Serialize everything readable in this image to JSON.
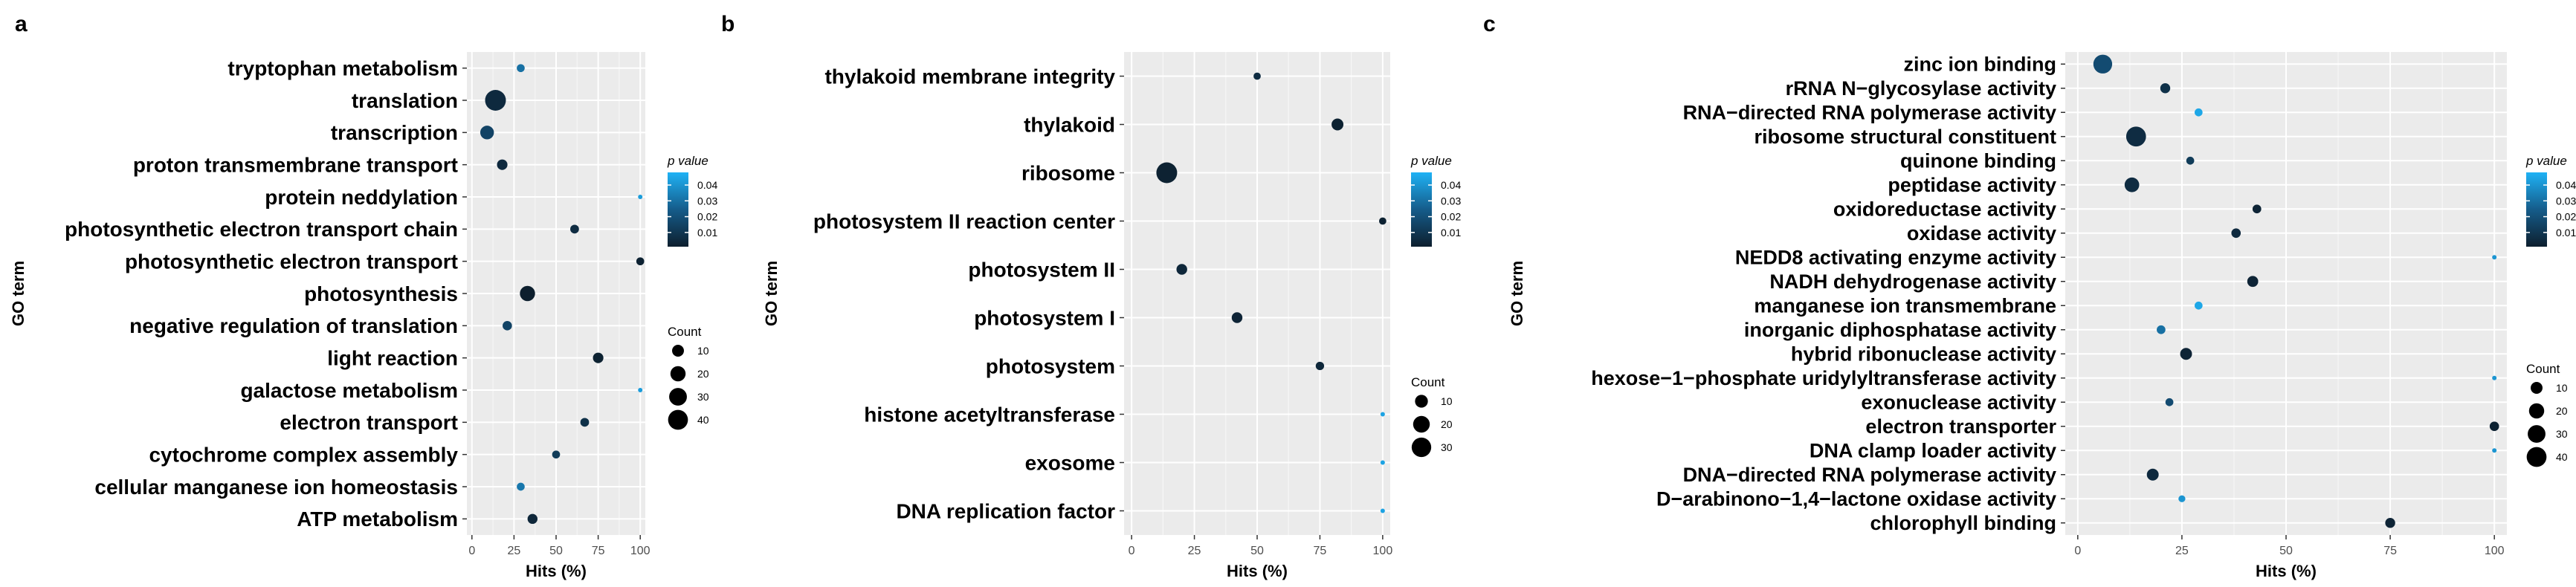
{
  "chart_data": [
    {
      "type": "scatter",
      "panel_letter": "a",
      "xlabel": "Hits (%)",
      "ylabel": "GO term",
      "xlim": [
        -3,
        103
      ],
      "xticks": [
        0,
        25,
        50,
        75,
        100
      ],
      "x_tick_labels": [
        "0",
        "25",
        "50",
        "75",
        "100"
      ],
      "grid": true,
      "legend_position": "right",
      "color_legend_title": "p value",
      "color_legend_ticks": [
        0.04,
        0.03,
        0.02,
        0.01
      ],
      "color_legend_tick_labels": [
        "0.04",
        "0.03",
        "0.02",
        "0.01"
      ],
      "pvalue_range": [
        0.001,
        0.048
      ],
      "size_legend_title": "Count",
      "size_legend_values": [
        10,
        20,
        30,
        40
      ],
      "size_range": [
        1,
        45
      ],
      "categories": [
        "tryptophan metabolism",
        "translation",
        "transcription",
        "proton transmembrane transport",
        "protein neddylation",
        "photosynthetic electron transport chain",
        "photosynthetic electron transport",
        "photosynthesis",
        "negative regulation of translation",
        "light reaction",
        "galactose metabolism",
        "electron transport",
        "cytochrome complex assembly",
        "cellular manganese ion homeostasis",
        "ATP metabolism"
      ],
      "hits": [
        29,
        14,
        9,
        18,
        100,
        61,
        100,
        33,
        21,
        75,
        100,
        67,
        50,
        29,
        36
      ],
      "counts": [
        3,
        45,
        15,
        7,
        1,
        4,
        3,
        20,
        5,
        7,
        1,
        4,
        3,
        3,
        6
      ],
      "p_values": [
        0.03,
        0.005,
        0.015,
        0.005,
        0.042,
        0.006,
        0.002,
        0.001,
        0.015,
        0.002,
        0.042,
        0.008,
        0.012,
        0.032,
        0.004
      ]
    },
    {
      "type": "scatter",
      "panel_letter": "b",
      "xlabel": "Hits (%)",
      "ylabel": "GO term",
      "xlim": [
        -3,
        103
      ],
      "xticks": [
        0,
        25,
        50,
        75,
        100
      ],
      "x_tick_labels": [
        "0",
        "25",
        "50",
        "75",
        "100"
      ],
      "grid": true,
      "legend_position": "right",
      "color_legend_title": "p value",
      "color_legend_ticks": [
        0.04,
        0.03,
        0.02,
        0.01
      ],
      "color_legend_tick_labels": [
        "0.04",
        "0.03",
        "0.02",
        "0.01"
      ],
      "pvalue_range": [
        0.001,
        0.048
      ],
      "size_legend_title": "Count",
      "size_legend_values": [
        10,
        20,
        30
      ],
      "size_range": [
        1,
        35
      ],
      "categories": [
        "thylakoid membrane integrity",
        "thylakoid",
        "ribosome",
        "photosystem II reaction center",
        "photosystem II",
        "photosystem I",
        "photosystem",
        "histone acetyltransferase",
        "exosome",
        "DNA replication factor"
      ],
      "hits": [
        50,
        82,
        14,
        100,
        20,
        42,
        75,
        100,
        100,
        100
      ],
      "counts": [
        2,
        8,
        35,
        2,
        6,
        6,
        3,
        1,
        1,
        1
      ],
      "p_values": [
        0.006,
        0.002,
        0.002,
        0.002,
        0.004,
        0.003,
        0.004,
        0.044,
        0.044,
        0.044
      ]
    },
    {
      "type": "scatter",
      "panel_letter": "c",
      "xlabel": "Hits (%)",
      "ylabel": "GO term",
      "xlim": [
        -3,
        103
      ],
      "xticks": [
        0,
        25,
        50,
        75,
        100
      ],
      "x_tick_labels": [
        "0",
        "25",
        "50",
        "75",
        "100"
      ],
      "grid": true,
      "legend_position": "right",
      "color_legend_title": "p value",
      "color_legend_ticks": [
        0.04,
        0.03,
        0.02,
        0.01
      ],
      "color_legend_tick_labels": [
        "0.04",
        "0.03",
        "0.02",
        "0.01"
      ],
      "pvalue_range": [
        0.001,
        0.048
      ],
      "size_legend_title": "Count",
      "size_legend_values": [
        10,
        20,
        30,
        40
      ],
      "size_range": [
        1,
        45
      ],
      "categories": [
        "zinc ion binding",
        "rRNA N−glycosylase activity",
        "RNA−directed RNA polymerase activity",
        "ribosome structural constituent",
        "quinone binding",
        "peptidase activity",
        "oxidoreductase activity",
        "oxidase activity",
        "NEDD8 activating enzyme activity",
        "NADH dehydrogenase activity",
        "manganese ion transmembrane",
        "inorganic diphosphatase activity",
        "hybrid ribonuclease activity",
        "hexose−1−phosphate uridylyltransferase activity",
        "exonuclease activity",
        "electron transporter",
        "DNA clamp loader activity",
        "DNA−directed RNA polymerase activity",
        "D−arabinono−1,4−lactone oxidase activity",
        "chlorophyll binding"
      ],
      "hits": [
        6,
        21,
        29,
        14,
        27,
        13,
        43,
        38,
        100,
        42,
        29,
        20,
        26,
        100,
        22,
        100,
        100,
        18,
        25,
        75
      ],
      "counts": [
        35,
        6,
        3,
        40,
        3,
        18,
        4,
        5,
        1,
        8,
        3,
        4,
        10,
        1,
        3,
        5,
        1,
        10,
        2,
        6
      ],
      "p_values": [
        0.018,
        0.008,
        0.045,
        0.006,
        0.012,
        0.006,
        0.003,
        0.005,
        0.04,
        0.003,
        0.045,
        0.03,
        0.003,
        0.04,
        0.018,
        0.002,
        0.04,
        0.005,
        0.04,
        0.003
      ]
    }
  ]
}
